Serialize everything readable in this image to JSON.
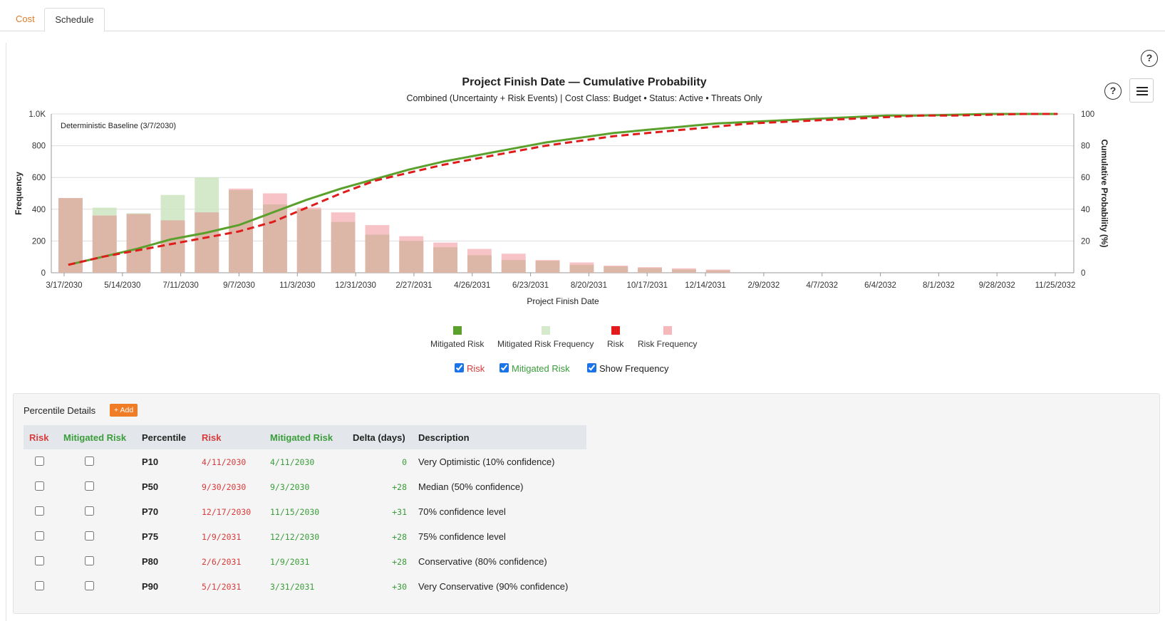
{
  "tabs": [
    {
      "label": "Cost",
      "active": false
    },
    {
      "label": "Schedule",
      "active": true
    }
  ],
  "help_label": "?",
  "chart_data": {
    "type": "bar+line",
    "title": "Project Finish Date — Cumulative Probability",
    "subtitle": "Combined (Uncertainty + Risk Events) | Cost Class: Budget  •  Status: Active  •  Threats Only",
    "xlabel": "Project Finish Date",
    "ylabel_left": "Frequency",
    "ylabel_right": "Cumulative Probability (%)",
    "ylim_left": [
      0,
      1000
    ],
    "ylim_right": [
      0,
      100
    ],
    "left_ticks": [
      "0",
      "200",
      "400",
      "600",
      "800",
      "1.0K"
    ],
    "right_ticks": [
      "0",
      "20",
      "40",
      "60",
      "80",
      "100"
    ],
    "x_tick_labels": [
      "3/17/2030",
      "5/14/2030",
      "7/11/2030",
      "9/7/2030",
      "11/3/2030",
      "12/31/2030",
      "2/27/2031",
      "4/26/2031",
      "6/23/2031",
      "8/20/2031",
      "10/17/2031",
      "12/14/2031",
      "2/9/2032",
      "4/7/2032",
      "6/4/2032",
      "8/1/2032",
      "9/28/2032",
      "11/25/2032"
    ],
    "baseline_label": "Deterministic Baseline (3/7/2030)",
    "bin_count": 30,
    "series": [
      {
        "name": "Mitigated Risk",
        "kind": "line",
        "color": "#5aa02c",
        "values": [
          5,
          10,
          15,
          21,
          25,
          30,
          38,
          46,
          53,
          59,
          65,
          70,
          74,
          78,
          82,
          85,
          88,
          90,
          92,
          94,
          95,
          96,
          97,
          98,
          99,
          99,
          99.5,
          100,
          100,
          100
        ]
      },
      {
        "name": "Mitigated Risk Frequency",
        "kind": "bar",
        "color": "#c8e3bc",
        "values": [
          470,
          410,
          375,
          490,
          600,
          520,
          430,
          400,
          320,
          240,
          200,
          160,
          110,
          80,
          75,
          50,
          40,
          30,
          20,
          15,
          0,
          0,
          0,
          0,
          0,
          0,
          0,
          0,
          0,
          0
        ]
      },
      {
        "name": "Risk",
        "kind": "line",
        "color": "#e01b1b",
        "values": [
          5,
          10,
          14,
          18,
          22,
          26,
          32,
          41,
          50,
          58,
          63,
          68,
          72,
          76,
          80,
          83,
          86,
          88,
          90,
          92,
          94,
          95,
          96,
          97,
          98,
          99,
          99,
          99.5,
          100,
          100
        ]
      },
      {
        "name": "Risk Frequency",
        "kind": "bar",
        "color": "#f7b8bc",
        "values": [
          470,
          360,
          370,
          330,
          380,
          530,
          500,
          410,
          380,
          300,
          230,
          190,
          150,
          120,
          80,
          65,
          45,
          35,
          28,
          20,
          0,
          0,
          0,
          0,
          0,
          0,
          0,
          0,
          0,
          0
        ]
      }
    ]
  },
  "legend": [
    {
      "label": "Mitigated Risk",
      "color": "#5aa02c"
    },
    {
      "label": "Mitigated Risk Frequency",
      "color": "#d5e9cc"
    },
    {
      "label": "Risk",
      "color": "#e01b1b"
    },
    {
      "label": "Risk Frequency",
      "color": "#f7b8bc"
    }
  ],
  "toggles": [
    {
      "label": "Risk",
      "checked": true,
      "color": "#d83b3b"
    },
    {
      "label": "Mitigated Risk",
      "checked": true,
      "color": "#3a9d3a"
    },
    {
      "label": "Show Frequency",
      "checked": true,
      "color": "#222222"
    }
  ],
  "details": {
    "title": "Percentile Details",
    "add_label": "+ Add",
    "columns": [
      "Risk",
      "Mitigated Risk",
      "Percentile",
      "Risk",
      "Mitigated Risk",
      "Delta (days)",
      "Description"
    ],
    "rows": [
      {
        "percentile": "P10",
        "risk": "4/11/2030",
        "mitigated": "4/11/2030",
        "delta": "0",
        "description": "Very Optimistic (10% confidence)"
      },
      {
        "percentile": "P50",
        "risk": "9/30/2030",
        "mitigated": "9/3/2030",
        "delta": "+28",
        "description": "Median (50% confidence)"
      },
      {
        "percentile": "P70",
        "risk": "12/17/2030",
        "mitigated": "11/15/2030",
        "delta": "+31",
        "description": "70% confidence level"
      },
      {
        "percentile": "P75",
        "risk": "1/9/2031",
        "mitigated": "12/12/2030",
        "delta": "+28",
        "description": "75% confidence level"
      },
      {
        "percentile": "P80",
        "risk": "2/6/2031",
        "mitigated": "1/9/2031",
        "delta": "+28",
        "description": "Conservative (80% confidence)"
      },
      {
        "percentile": "P90",
        "risk": "5/1/2031",
        "mitigated": "3/31/2031",
        "delta": "+30",
        "description": "Very Conservative (90% confidence)"
      }
    ]
  }
}
